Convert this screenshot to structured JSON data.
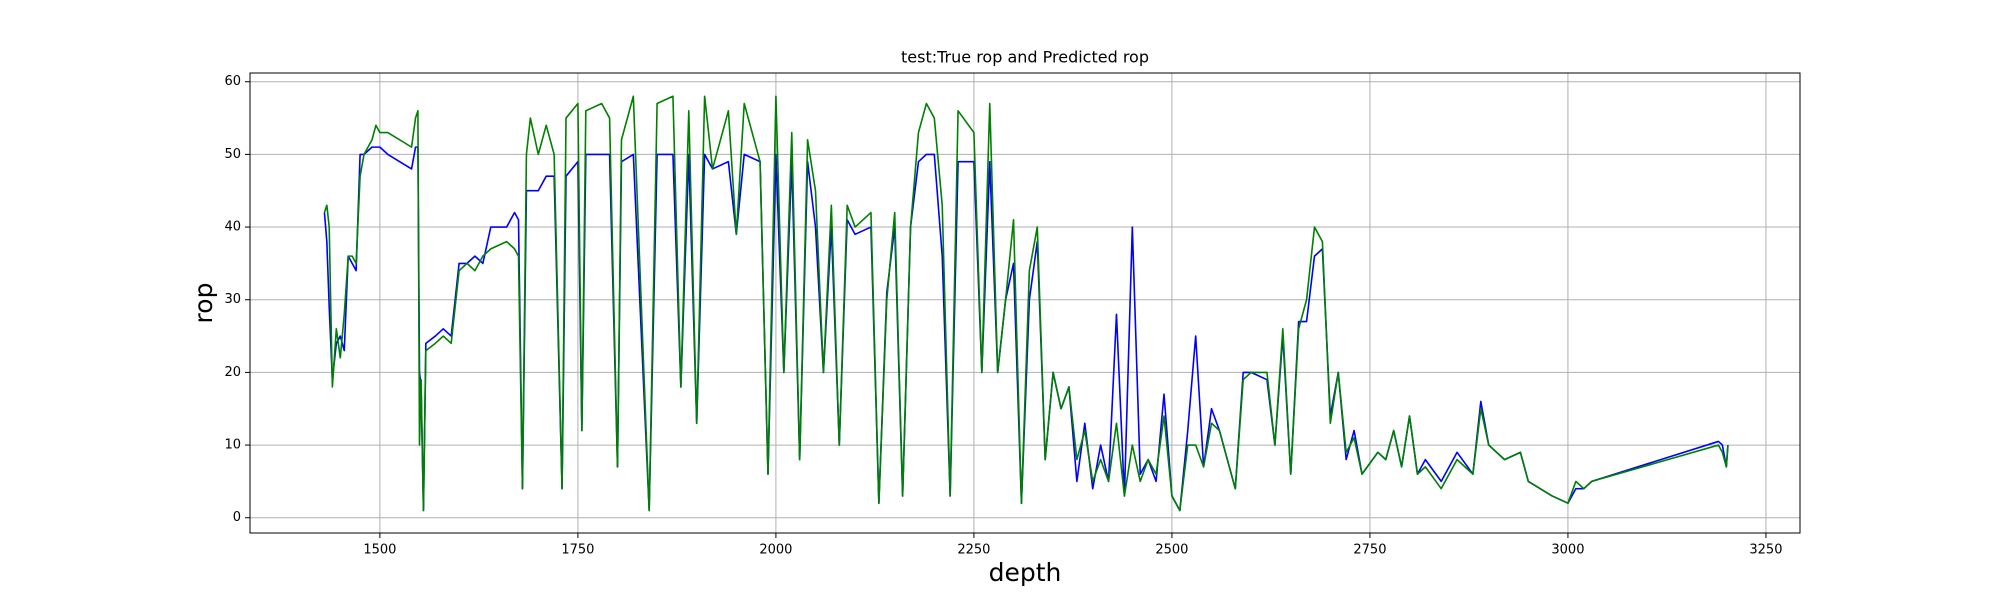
{
  "chart_data": {
    "type": "line",
    "title": "test:True rop and Predicted rop",
    "xlabel": "depth",
    "ylabel": "rop",
    "x": [
      1430,
      1433,
      1436,
      1440,
      1445,
      1450,
      1455,
      1460,
      1465,
      1470,
      1475,
      1480,
      1490,
      1495,
      1500,
      1510,
      1540,
      1545,
      1548,
      1550,
      1552,
      1555,
      1558,
      1570,
      1580,
      1590,
      1600,
      1610,
      1620,
      1630,
      1640,
      1660,
      1670,
      1675,
      1680,
      1685,
      1690,
      1700,
      1710,
      1720,
      1730,
      1735,
      1750,
      1755,
      1760,
      1780,
      1790,
      1800,
      1805,
      1820,
      1840,
      1850,
      1870,
      1880,
      1890,
      1900,
      1910,
      1920,
      1940,
      1950,
      1960,
      1980,
      1990,
      2000,
      2010,
      2020,
      2030,
      2040,
      2050,
      2060,
      2070,
      2080,
      2090,
      2100,
      2120,
      2130,
      2140,
      2150,
      2160,
      2170,
      2180,
      2190,
      2200,
      2210,
      2220,
      2230,
      2250,
      2260,
      2270,
      2280,
      2290,
      2300,
      2310,
      2320,
      2330,
      2340,
      2350,
      2360,
      2370,
      2380,
      2390,
      2400,
      2410,
      2420,
      2430,
      2440,
      2450,
      2460,
      2470,
      2480,
      2490,
      2500,
      2510,
      2520,
      2530,
      2540,
      2550,
      2560,
      2580,
      2590,
      2600,
      2620,
      2630,
      2640,
      2650,
      2660,
      2670,
      2680,
      2690,
      2700,
      2710,
      2720,
      2730,
      2740,
      2760,
      2770,
      2780,
      2790,
      2800,
      2810,
      2820,
      2840,
      2860,
      2880,
      2890,
      2900,
      2920,
      2940,
      2950,
      2980,
      3000,
      3010,
      3020,
      3030,
      3190,
      3195,
      3200,
      3202
    ],
    "series": [
      {
        "color": "#0000ff",
        "values": [
          42,
          38,
          29,
          19,
          24,
          25,
          23,
          36,
          35,
          34,
          50,
          50,
          51,
          51,
          51,
          50,
          48,
          51,
          51,
          20,
          18,
          1,
          24,
          25,
          26,
          25,
          35,
          35,
          36,
          35,
          40,
          40,
          42,
          41,
          4,
          45,
          45,
          45,
          47,
          47,
          4,
          47,
          49,
          12,
          50,
          50,
          50,
          7,
          49,
          50,
          1,
          50,
          50,
          18,
          50,
          13,
          50,
          48,
          49,
          39,
          50,
          49,
          6,
          50,
          20,
          49,
          8,
          49,
          40,
          20,
          40,
          10,
          41,
          39,
          40,
          2,
          31,
          40,
          3,
          40,
          49,
          50,
          50,
          36,
          3,
          49,
          49,
          20,
          49,
          20,
          30,
          35,
          2,
          30,
          38,
          8,
          20,
          15,
          18,
          5,
          13,
          4,
          10,
          5,
          28,
          3,
          40,
          6,
          8,
          5,
          17,
          3,
          1,
          12,
          25,
          7,
          15,
          12,
          4,
          20,
          20,
          19,
          10,
          25,
          6,
          27,
          27,
          36,
          37,
          14,
          20,
          8,
          12,
          6,
          9,
          8,
          12,
          7,
          14,
          6,
          8,
          5,
          9,
          6,
          16,
          10,
          8,
          9,
          5,
          3,
          2,
          4,
          4,
          5,
          10.5,
          10,
          7,
          10
        ]
      },
      {
        "color": "#008000",
        "values": [
          42,
          43,
          40,
          18,
          26,
          22,
          28,
          36,
          36,
          35,
          47,
          50,
          52,
          54,
          53,
          53,
          51,
          55,
          56,
          10,
          19,
          1,
          23,
          24,
          25,
          24,
          34,
          35,
          34,
          36,
          37,
          38,
          37,
          36,
          4,
          50,
          55,
          50,
          54,
          50,
          4,
          55,
          57,
          12,
          56,
          57,
          55,
          7,
          52,
          58,
          1,
          57,
          58,
          18,
          56,
          13,
          58,
          48,
          56,
          39,
          57,
          49,
          6,
          58,
          20,
          53,
          8,
          52,
          45,
          20,
          43,
          10,
          43,
          40,
          42,
          2,
          30,
          42,
          3,
          40,
          53,
          57,
          55,
          43,
          3,
          56,
          53,
          20,
          57,
          20,
          30,
          41,
          2,
          34,
          40,
          8,
          20,
          15,
          18,
          8,
          12,
          5,
          8,
          5,
          13,
          3,
          10,
          5,
          8,
          6,
          14,
          3,
          1,
          10,
          10,
          7,
          13,
          12,
          4,
          19,
          20,
          20,
          10,
          26,
          6,
          26,
          30,
          40,
          38,
          13,
          20,
          9,
          11,
          6,
          9,
          8,
          12,
          7,
          14,
          6,
          7,
          4,
          8,
          6,
          15,
          10,
          8,
          9,
          5,
          3,
          2,
          5,
          4,
          5,
          10,
          9,
          7,
          10
        ]
      }
    ],
    "xlim": [
      1336,
      3293
    ],
    "ylim": [
      -2.1,
      61.2
    ],
    "xticks": [
      1500,
      1750,
      2000,
      2250,
      2500,
      2750,
      3000,
      3250
    ],
    "yticks": [
      0,
      10,
      20,
      30,
      40,
      50,
      60
    ],
    "grid": true
  }
}
